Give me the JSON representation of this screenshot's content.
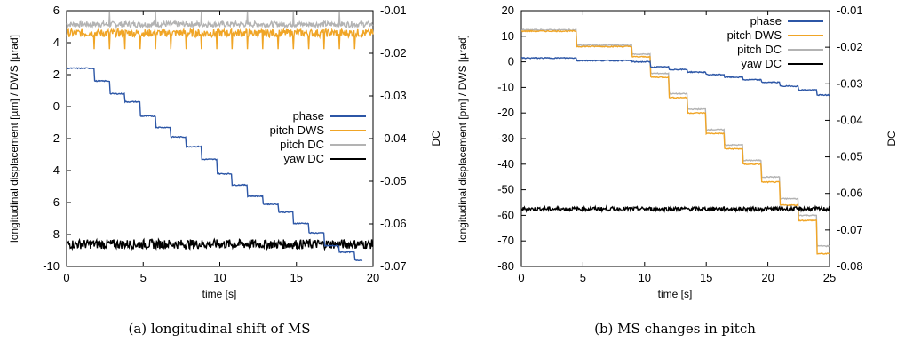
{
  "colors": {
    "phase": "#2c56a6",
    "pitch_dws": "#f0a526",
    "pitch_dc": "#b3b3b3",
    "yaw_dc": "#000000"
  },
  "chart_data": [
    {
      "type": "line",
      "caption": "(a) longitudinal shift of MS",
      "xlabel": "time [s]",
      "ylabel_left": "longitudinal displacement [µm] / DWS [µrad]",
      "ylabel_right": "DC",
      "xlim": [
        0,
        20
      ],
      "ylim_left": [
        -10,
        6
      ],
      "ylim_right": [
        -0.07,
        -0.01
      ],
      "xticks": [
        "0",
        "5",
        "10",
        "15",
        "20"
      ],
      "yticks_left": [
        "6",
        "4",
        "2",
        "0",
        "-2",
        "-4",
        "-6",
        "-8",
        "-10"
      ],
      "yticks_right": [
        "-0.01",
        "-0.02",
        "-0.03",
        "-0.04",
        "-0.05",
        "-0.06",
        "-0.07"
      ],
      "legend_position": "center-right",
      "series": [
        {
          "name": "phase",
          "axis": "left",
          "color_key": "phase",
          "kind": "step",
          "steps_x": [
            1.8,
            2.8,
            3.8,
            4.8,
            5.8,
            6.8,
            7.8,
            8.8,
            9.8,
            10.8,
            11.8,
            12.8,
            13.8,
            14.8,
            15.8,
            16.8,
            17.8,
            18.8
          ],
          "levels": [
            2.4,
            1.6,
            0.8,
            0.3,
            -0.6,
            -1.3,
            -1.9,
            -2.5,
            -3.3,
            -4.2,
            -4.9,
            -5.6,
            -6.1,
            -6.6,
            -7.3,
            -7.9,
            -8.7,
            -9.1,
            -9.6
          ],
          "x_range": [
            0,
            19.3
          ]
        },
        {
          "name": "pitch DWS",
          "axis": "left",
          "color_key": "pitch_dws",
          "kind": "noise",
          "x_range": [
            0,
            20
          ],
          "base": 4.6,
          "amp": 0.25,
          "spikes_x": [
            1.8,
            2.8,
            3.8,
            4.8,
            5.8,
            6.8,
            7.8,
            8.8,
            9.8,
            10.8,
            11.8,
            12.8,
            13.8,
            14.8,
            15.8,
            16.8,
            17.8,
            18.8
          ],
          "spike_to": 3.6
        },
        {
          "name": "pitch DC",
          "axis": "left",
          "color_key": "pitch_dc",
          "kind": "noise",
          "x_range": [
            0,
            20
          ],
          "base": 5.15,
          "amp": 0.18,
          "spikes_x": [
            2.8,
            5.8,
            8.8,
            11.8,
            14.8,
            17.8
          ],
          "spike_to": 5.9
        },
        {
          "name": "yaw DC",
          "axis": "left",
          "color_key": "yaw_dc",
          "kind": "noise",
          "x_range": [
            0,
            20
          ],
          "base": -8.6,
          "amp": 0.3,
          "spikes_x": [],
          "spike_to": 0
        }
      ]
    },
    {
      "type": "line",
      "caption": "(b) MS changes in pitch",
      "xlabel": "time [s]",
      "ylabel_left": "longitudinal displacement [pm] / DWS [µrad]",
      "ylabel_right": "DC",
      "xlim": [
        0,
        25
      ],
      "ylim_left": [
        -80,
        20
      ],
      "ylim_right": [
        -0.08,
        -0.01
      ],
      "xticks": [
        "0",
        "5",
        "10",
        "15",
        "20",
        "25"
      ],
      "yticks_left": [
        "20",
        "10",
        "0",
        "-10",
        "-20",
        "-30",
        "-40",
        "-50",
        "-60",
        "-70",
        "-80"
      ],
      "yticks_right": [
        "-0.01",
        "-0.02",
        "-0.03",
        "-0.04",
        "-0.05",
        "-0.06",
        "-0.07",
        "-0.08"
      ],
      "legend_position": "top-right",
      "series": [
        {
          "name": "phase",
          "axis": "left",
          "color_key": "phase",
          "kind": "step",
          "steps_x": [
            4.5,
            9,
            10.5,
            12,
            13.5,
            15,
            16.5,
            18,
            19.5,
            21,
            22.5,
            24
          ],
          "levels": [
            1.5,
            0.5,
            0,
            -2,
            -3,
            -4,
            -5,
            -6,
            -7,
            -8,
            -9.5,
            -11,
            -13
          ],
          "x_range": [
            0,
            25
          ]
        },
        {
          "name": "pitch DWS",
          "axis": "left",
          "color_key": "pitch_dws",
          "kind": "step",
          "steps_x": [
            4.5,
            9,
            10.5,
            12,
            13.5,
            15,
            16.5,
            18,
            19.5,
            21,
            22.5,
            24
          ],
          "levels": [
            12,
            6,
            2,
            -6,
            -14,
            -20,
            -28,
            -34,
            -40,
            -47,
            -56,
            -62,
            -75
          ],
          "x_range": [
            0,
            25
          ]
        },
        {
          "name": "pitch DC",
          "axis": "left",
          "color_key": "pitch_dc",
          "kind": "step",
          "steps_x": [
            4.5,
            9,
            10.5,
            12,
            13.5,
            15,
            16.5,
            18,
            19.5,
            21,
            22.5,
            24
          ],
          "levels": [
            12.5,
            6.5,
            3,
            -4.5,
            -12.5,
            -18.5,
            -26.5,
            -32.5,
            -38.5,
            -45,
            -53.5,
            -60,
            -72
          ],
          "x_range": [
            0,
            25
          ]
        },
        {
          "name": "yaw DC",
          "axis": "left",
          "color_key": "yaw_dc",
          "kind": "noise",
          "x_range": [
            0,
            25
          ],
          "base": -57.5,
          "amp": 0.8,
          "spikes_x": [],
          "spike_to": 0
        }
      ]
    }
  ]
}
